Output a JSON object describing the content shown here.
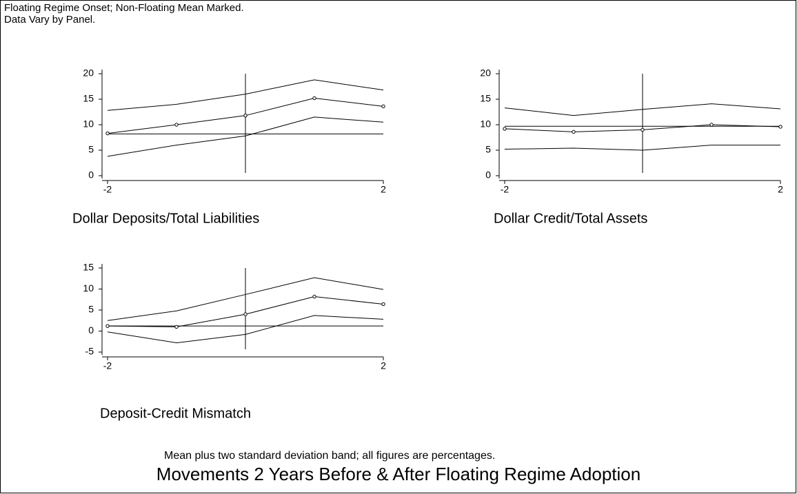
{
  "header": {
    "line1": "Floating Regime Onset; Non-Floating Mean Marked.",
    "line2": "Data Vary by Panel."
  },
  "chart_data": [
    {
      "type": "line",
      "title": "Dollar Deposits/Total Liabilities",
      "x": [
        -2,
        -1,
        0,
        1,
        2
      ],
      "series": [
        {
          "color": "#000000",
          "values": [
            12.8,
            14,
            16,
            18.8,
            16.8
          ]
        },
        {
          "color": "#000000",
          "values": [
            8.3,
            10,
            11.8,
            15.2,
            13.6
          ],
          "markers": true
        },
        {
          "color": "#000000",
          "values": [
            3.8,
            6,
            7.8,
            11.5,
            10.5
          ]
        }
      ],
      "reference_y": 8.2,
      "event_x": 0,
      "xlim": [
        -2,
        2
      ],
      "xticks": [
        -2,
        2
      ],
      "ylim": [
        0,
        20
      ],
      "yticks": [
        0,
        5,
        10,
        15,
        20
      ]
    },
    {
      "type": "line",
      "title": "Dollar Credit/Total Assets",
      "x": [
        -2,
        -1,
        0,
        1,
        2
      ],
      "series": [
        {
          "color": "#000000",
          "values": [
            13.3,
            11.8,
            13,
            14.1,
            13.1
          ]
        },
        {
          "color": "#000000",
          "values": [
            9.2,
            8.6,
            9,
            10,
            9.6
          ],
          "markers": true
        },
        {
          "color": "#000000",
          "values": [
            5.2,
            5.4,
            5,
            6,
            6
          ]
        }
      ],
      "reference_y": 9.7,
      "event_x": 0,
      "xlim": [
        -2,
        2
      ],
      "xticks": [
        -2,
        2
      ],
      "ylim": [
        0,
        20
      ],
      "yticks": [
        0,
        5,
        10,
        15,
        20
      ]
    },
    {
      "type": "line",
      "title": "Deposit-Credit Mismatch",
      "x": [
        -2,
        -1,
        0,
        1,
        2
      ],
      "series": [
        {
          "color": "#000000",
          "values": [
            2.5,
            4.8,
            8.7,
            12.7,
            9.9
          ]
        },
        {
          "color": "#000000",
          "values": [
            1.2,
            1,
            4,
            8.2,
            6.4
          ],
          "markers": true
        },
        {
          "color": "#000000",
          "values": [
            -0.2,
            -2.8,
            -0.8,
            3.7,
            2.8
          ]
        }
      ],
      "reference_y": 1.2,
      "event_x": 0,
      "xlim": [
        -2,
        2
      ],
      "xticks": [
        -2,
        2
      ],
      "ylim": [
        -5,
        15
      ],
      "yticks": [
        -5,
        0,
        5,
        10,
        15
      ]
    }
  ],
  "footer": {
    "note": "Mean plus two standard deviation band; all figures are percentages.",
    "title": "Movements 2 Years Before & After Floating Regime Adoption"
  }
}
